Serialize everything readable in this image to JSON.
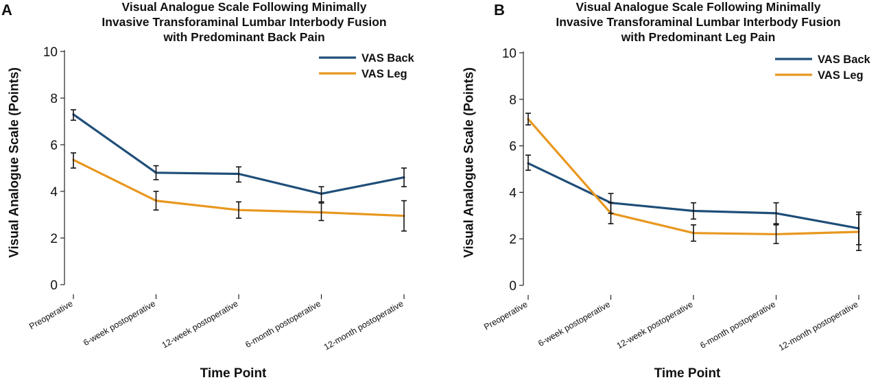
{
  "chart_data": [
    {
      "panel": "A",
      "type": "line",
      "title": "Visual Analogue Scale Following Minimally Invasive Transforaminal Lumbar Interbody Fusion with Predominant Back Pain",
      "title_lines": [
        "Visual Analogue Scale Following Minimally",
        "Invasive Transforaminal Lumbar Interbody Fusion",
        "with Predominant Back Pain"
      ],
      "xlabel": "Time Point",
      "ylabel": "Visual Analogue Scale (Points)",
      "categories": [
        "Preoperative",
        "6-week postoperative",
        "12-week postoperative",
        "6-month postoperative",
        "12-month postoperative"
      ],
      "ylim": [
        0,
        10
      ],
      "yticks": [
        "0",
        "2",
        "4",
        "6",
        "8",
        "10"
      ],
      "legend_position": "top-right",
      "grid": false,
      "series": [
        {
          "name": "VAS Back",
          "color": "#1f4e79",
          "values": [
            7.3,
            4.8,
            4.75,
            3.9,
            4.6
          ],
          "err_low": [
            7.05,
            4.5,
            4.4,
            3.55,
            4.2
          ],
          "err_high": [
            7.5,
            5.1,
            5.05,
            4.2,
            5.0
          ]
        },
        {
          "name": "VAS Leg",
          "color": "#e8971e",
          "values": [
            5.35,
            3.6,
            3.2,
            3.1,
            2.95
          ],
          "err_low": [
            5.0,
            3.2,
            2.85,
            2.75,
            2.3
          ],
          "err_high": [
            5.65,
            4.0,
            3.55,
            3.5,
            3.6
          ]
        }
      ]
    },
    {
      "panel": "B",
      "type": "line",
      "title": "Visual Analogue Scale Following Minimally Invasive Transforaminal Lumbar Interbody Fusion with Predominant Leg Pain",
      "title_lines": [
        "Visual Analogue Scale Following Minimally",
        "Invasive Transforaminal Lumbar Interbody Fusion",
        "with Predominant Leg Pain"
      ],
      "xlabel": "Time Point",
      "ylabel": "Visual Analogue Scale (Points)",
      "categories": [
        "Preoperative",
        "6-week postoperative",
        "12-week postoperative",
        "6-month postoperative",
        "12-month postoperative"
      ],
      "ylim": [
        0,
        10
      ],
      "yticks": [
        "0",
        "2",
        "4",
        "6",
        "8",
        "10"
      ],
      "legend_position": "top-right",
      "grid": false,
      "series": [
        {
          "name": "VAS Back",
          "color": "#1f4e79",
          "values": [
            5.25,
            3.55,
            3.2,
            3.1,
            2.45
          ],
          "err_low": [
            4.95,
            3.1,
            2.85,
            2.65,
            1.75
          ],
          "err_high": [
            5.6,
            3.95,
            3.55,
            3.55,
            3.15
          ]
        },
        {
          "name": "VAS Leg",
          "color": "#e8971e",
          "values": [
            7.15,
            3.1,
            2.25,
            2.2,
            2.3
          ],
          "err_low": [
            6.9,
            2.65,
            1.9,
            1.8,
            1.5
          ],
          "err_high": [
            7.4,
            3.55,
            2.6,
            2.6,
            3.05
          ]
        }
      ]
    }
  ]
}
